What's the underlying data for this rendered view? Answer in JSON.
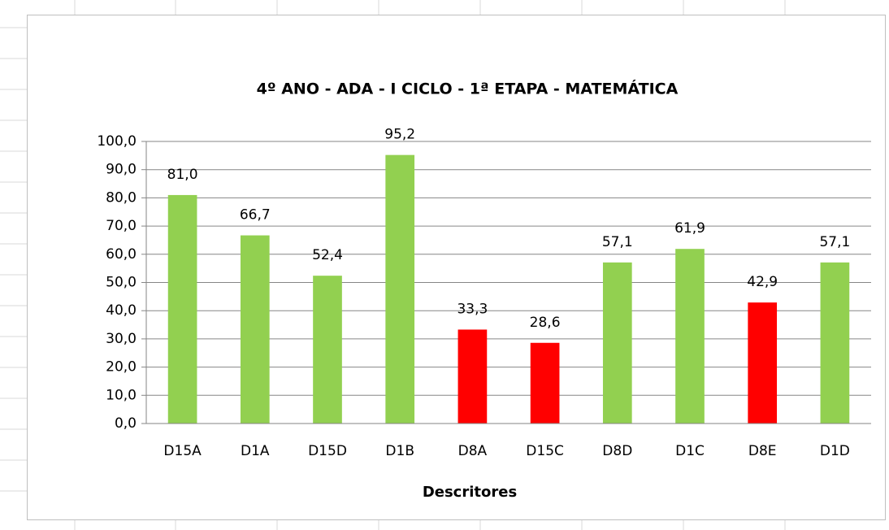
{
  "chart_data": {
    "type": "bar",
    "title": "4º ANO - ADA - I CICLO - 1ª ETAPA - MATEMÁTICA",
    "x_label": "Descritores",
    "categories": [
      "D15A",
      "D1A",
      "D15D",
      "D1B",
      "D8A",
      "D15C",
      "D8D",
      "D1C",
      "D8E",
      "D1D"
    ],
    "values": [
      81.0,
      66.7,
      52.4,
      95.2,
      33.3,
      28.6,
      57.1,
      61.9,
      42.9,
      57.1
    ],
    "value_labels": [
      "81,0",
      "66,7",
      "52,4",
      "95,2",
      "33,3",
      "28,6",
      "57,1",
      "61,9",
      "42,9",
      "57,1"
    ],
    "colors": [
      "#92d050",
      "#92d050",
      "#92d050",
      "#92d050",
      "#ff0000",
      "#ff0000",
      "#92d050",
      "#92d050",
      "#ff0000",
      "#92d050"
    ],
    "ylim": [
      0,
      100
    ],
    "yticks": [
      {
        "value": 0,
        "label": "0,0"
      },
      {
        "value": 10,
        "label": "10,0"
      },
      {
        "value": 20,
        "label": "20,0"
      },
      {
        "value": 30,
        "label": "30,0"
      },
      {
        "value": 40,
        "label": "40,0"
      },
      {
        "value": 50,
        "label": "50,0"
      },
      {
        "value": 60,
        "label": "60,0"
      },
      {
        "value": 70,
        "label": "70,0"
      },
      {
        "value": 80,
        "label": "80,0"
      },
      {
        "value": 90,
        "label": "90,0"
      },
      {
        "value": 100,
        "label": "100,0"
      }
    ],
    "grid": true
  }
}
